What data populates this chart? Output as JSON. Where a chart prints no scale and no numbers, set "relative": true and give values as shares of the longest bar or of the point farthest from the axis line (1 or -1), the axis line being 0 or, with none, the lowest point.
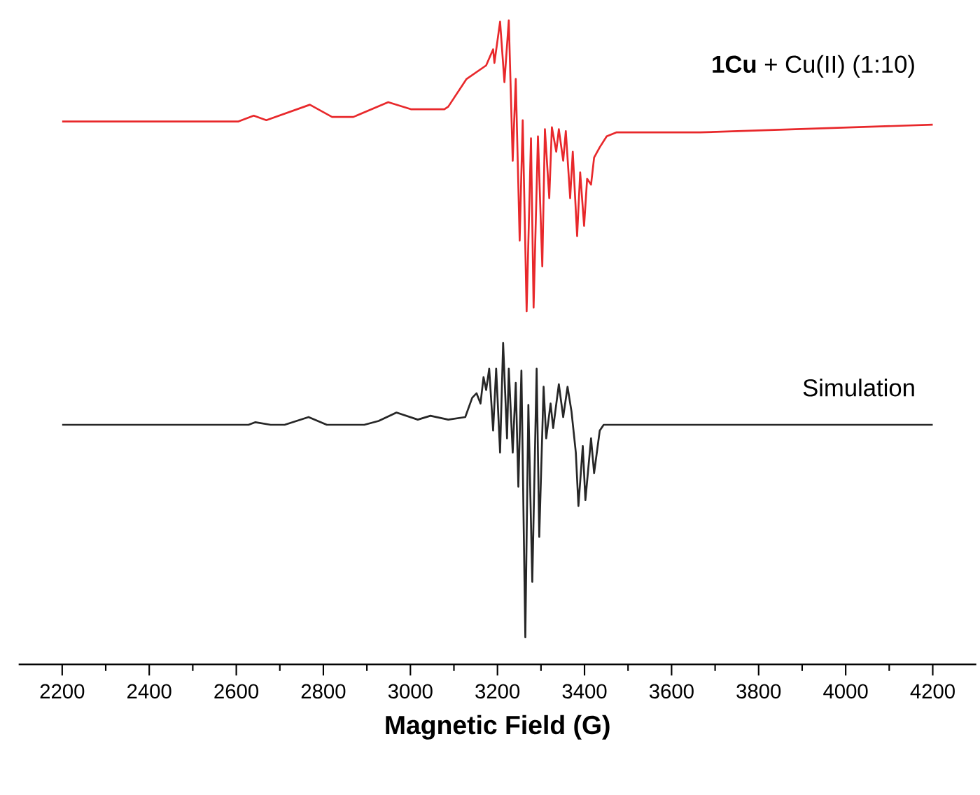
{
  "chart_data": {
    "type": "line",
    "xlabel": "Magnetic Field (G)",
    "relative": true,
    "xlim": [
      2100,
      4300
    ],
    "xticks": [
      2200,
      2400,
      2600,
      2800,
      3000,
      3200,
      3400,
      3600,
      3800,
      4000,
      4200
    ],
    "series": [
      {
        "name": "**1Cu** + Cu(II) (1:10)",
        "color": "#e8282b",
        "x": [
          2200,
          2605,
          2640,
          2669,
          2769,
          2820,
          2869,
          2949,
          3001,
          3078,
          3087,
          3129,
          3174,
          3190,
          3193,
          3206,
          3216,
          3226,
          3235,
          3242,
          3251,
          3258,
          3267,
          3277,
          3283,
          3293,
          3303,
          3309,
          3319,
          3325,
          3335,
          3341,
          3351,
          3357,
          3367,
          3373,
          3383,
          3390,
          3399,
          3406,
          3415,
          3422,
          3435,
          3451,
          3473,
          3666,
          4200
        ],
        "values": [
          0.843,
          0.843,
          0.852,
          0.845,
          0.869,
          0.85,
          0.85,
          0.873,
          0.862,
          0.862,
          0.866,
          0.909,
          0.93,
          0.955,
          0.934,
          0.998,
          0.904,
          1.0,
          0.782,
          0.909,
          0.658,
          0.845,
          0.548,
          0.817,
          0.554,
          0.82,
          0.618,
          0.831,
          0.724,
          0.834,
          0.796,
          0.831,
          0.782,
          0.828,
          0.724,
          0.796,
          0.665,
          0.764,
          0.681,
          0.754,
          0.745,
          0.787,
          0.803,
          0.82,
          0.826,
          0.826,
          0.838
        ]
      },
      {
        "name": "Simulation",
        "color": "#262626",
        "x": [
          2200,
          2628,
          2644,
          2679,
          2711,
          2766,
          2808,
          2894,
          2927,
          2968,
          3017,
          3046,
          3087,
          3126,
          3142,
          3152,
          3161,
          3168,
          3174,
          3181,
          3190,
          3197,
          3206,
          3213,
          3222,
          3226,
          3235,
          3242,
          3248,
          3255,
          3264,
          3271,
          3280,
          3290,
          3296,
          3306,
          3312,
          3322,
          3328,
          3341,
          3351,
          3361,
          3370,
          3380,
          3386,
          3396,
          3402,
          3415,
          3422,
          3435,
          3444,
          4200
        ],
        "values": [
          0.372,
          0.372,
          0.376,
          0.372,
          0.372,
          0.384,
          0.372,
          0.372,
          0.378,
          0.391,
          0.38,
          0.386,
          0.38,
          0.384,
          0.414,
          0.421,
          0.405,
          0.446,
          0.426,
          0.459,
          0.363,
          0.459,
          0.329,
          0.499,
          0.351,
          0.459,
          0.329,
          0.437,
          0.276,
          0.456,
          0.042,
          0.403,
          0.128,
          0.459,
          0.198,
          0.431,
          0.351,
          0.405,
          0.367,
          0.435,
          0.384,
          0.431,
          0.393,
          0.329,
          0.246,
          0.339,
          0.255,
          0.351,
          0.297,
          0.363,
          0.372,
          0.372
        ]
      }
    ]
  }
}
